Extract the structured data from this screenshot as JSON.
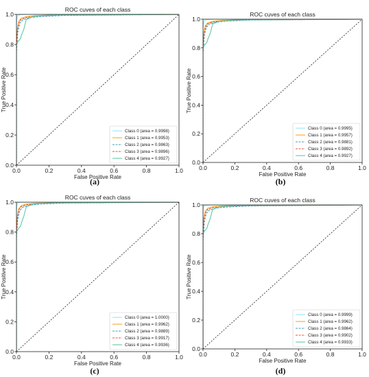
{
  "style": {
    "class_colors": [
      "#8fe8f7",
      "#f5a623",
      "#3b9ec2",
      "#e8503a",
      "#5fc9a7"
    ],
    "class_dash": [
      "solid",
      "solid",
      "dashed",
      "dashed",
      "solid"
    ],
    "diagonal_color": "#333333"
  },
  "chart_data": [
    {
      "type": "line",
      "panel": "a",
      "caption": "(a)",
      "title": "ROC cuves of each class",
      "xlabel": "False Positive Rate",
      "ylabel": "True Positive Rate",
      "xlim": [
        0,
        1
      ],
      "ylim": [
        0,
        1
      ],
      "xticks": [
        "0.0",
        "0.2",
        "0.4",
        "0.6",
        "0.8",
        "1.0"
      ],
      "yticks": [
        "0.0",
        "0.2",
        "0.4",
        "0.6",
        "0.8",
        "1.0"
      ],
      "grid": false,
      "legend_position": "lower-right",
      "series": [
        {
          "name": "Class 0 (area = 0.9998)",
          "x": [
            0,
            0,
            0.002,
            0.006,
            0.015,
            0.03,
            0.06,
            1
          ],
          "y": [
            0,
            0.91,
            0.97,
            0.99,
            0.997,
            0.999,
            1,
            1
          ]
        },
        {
          "name": "Class 1 (area = 0.9953)",
          "x": [
            0,
            0,
            0.006,
            0.015,
            0.03,
            0.06,
            0.12,
            0.25,
            1
          ],
          "y": [
            0,
            0.8,
            0.91,
            0.955,
            0.975,
            0.985,
            0.992,
            0.997,
            1
          ]
        },
        {
          "name": "Class 2 (area = 0.9863)",
          "x": [
            0,
            0,
            0.008,
            0.02,
            0.04,
            0.08,
            0.15,
            0.3,
            1
          ],
          "y": [
            0,
            0.75,
            0.88,
            0.94,
            0.965,
            0.978,
            0.986,
            0.993,
            1
          ]
        },
        {
          "name": "Class 3 (area = 0.9896)",
          "x": [
            0,
            0,
            0.006,
            0.015,
            0.03,
            0.06,
            0.12,
            0.25,
            1
          ],
          "y": [
            0,
            0.78,
            0.9,
            0.945,
            0.968,
            0.98,
            0.988,
            0.995,
            1
          ]
        },
        {
          "name": "Class 4 (area = 0.9927)",
          "x": [
            0,
            0,
            0.01,
            0.025,
            0.03,
            0.045,
            0.06,
            0.1,
            0.2,
            1
          ],
          "y": [
            0,
            0.8,
            0.82,
            0.84,
            0.86,
            0.9,
            0.965,
            0.985,
            0.995,
            1
          ]
        },
        {
          "name": "",
          "x": [
            0,
            1
          ],
          "y": [
            0,
            1
          ]
        }
      ]
    },
    {
      "type": "line",
      "panel": "b",
      "caption": "(b)",
      "title": "ROC cuves of each class",
      "xlabel": "False Positive Rate",
      "ylabel": "True Positive Rate",
      "xlim": [
        0,
        1
      ],
      "ylim": [
        0,
        1
      ],
      "xticks": [
        "0.0",
        "0.2",
        "0.4",
        "0.6",
        "0.8",
        "1.0"
      ],
      "yticks": [
        "0.0",
        "0.2",
        "0.4",
        "0.6",
        "0.8",
        "1.0"
      ],
      "grid": false,
      "legend_position": "lower-right",
      "series": [
        {
          "name": "Class 0 (area = 0.9995)",
          "x": [
            0,
            0,
            0.002,
            0.006,
            0.015,
            0.03,
            0.06,
            1
          ],
          "y": [
            0,
            0.9,
            0.965,
            0.985,
            0.995,
            0.998,
            1,
            1
          ]
        },
        {
          "name": "Class 1 (area = 0.9957)",
          "x": [
            0,
            0,
            0.006,
            0.015,
            0.03,
            0.06,
            0.12,
            0.25,
            1
          ],
          "y": [
            0,
            0.8,
            0.91,
            0.955,
            0.975,
            0.985,
            0.992,
            0.997,
            1
          ]
        },
        {
          "name": "Class 2 (area = 0.9881)",
          "x": [
            0,
            0,
            0.008,
            0.02,
            0.04,
            0.08,
            0.15,
            0.3,
            1
          ],
          "y": [
            0,
            0.76,
            0.885,
            0.942,
            0.966,
            0.979,
            0.987,
            0.994,
            1
          ]
        },
        {
          "name": "Class 3 (area = 0.9892)",
          "x": [
            0,
            0,
            0.006,
            0.015,
            0.03,
            0.06,
            0.12,
            0.25,
            1
          ],
          "y": [
            0,
            0.78,
            0.9,
            0.945,
            0.968,
            0.98,
            0.988,
            0.995,
            1
          ]
        },
        {
          "name": "Class 4 (area = 0.9927)",
          "x": [
            0,
            0,
            0.01,
            0.025,
            0.03,
            0.045,
            0.06,
            0.1,
            0.2,
            1
          ],
          "y": [
            0,
            0.8,
            0.82,
            0.84,
            0.86,
            0.9,
            0.965,
            0.985,
            0.995,
            1
          ]
        },
        {
          "name": "",
          "x": [
            0,
            1
          ],
          "y": [
            0,
            1
          ]
        }
      ]
    },
    {
      "type": "line",
      "panel": "c",
      "caption": "(c)",
      "title": "ROC cuves of each class",
      "xlabel": "False Positive Rate",
      "ylabel": "True Positive Rate",
      "xlim": [
        0,
        1
      ],
      "ylim": [
        0,
        1
      ],
      "xticks": [
        "0.0",
        "0.2",
        "0.4",
        "0.6",
        "0.8",
        "1.0"
      ],
      "yticks": [
        "0.0",
        "0.2",
        "0.4",
        "0.6",
        "0.8",
        "1.0"
      ],
      "grid": false,
      "legend_position": "lower-right",
      "series": [
        {
          "name": "Class 0 (area = 1.0000)",
          "x": [
            0,
            0,
            0.002,
            0.006,
            0.015,
            0.03,
            1
          ],
          "y": [
            0,
            0.93,
            0.98,
            0.995,
            0.999,
            1,
            1
          ]
        },
        {
          "name": "Class 1 (area = 0.9962)",
          "x": [
            0,
            0,
            0.006,
            0.015,
            0.03,
            0.06,
            0.12,
            0.25,
            1
          ],
          "y": [
            0,
            0.81,
            0.915,
            0.958,
            0.977,
            0.987,
            0.993,
            0.998,
            1
          ]
        },
        {
          "name": "Class 2 (area = 0.9889)",
          "x": [
            0,
            0,
            0.008,
            0.02,
            0.04,
            0.08,
            0.15,
            0.3,
            1
          ],
          "y": [
            0,
            0.76,
            0.887,
            0.944,
            0.967,
            0.98,
            0.988,
            0.994,
            1
          ]
        },
        {
          "name": "Class 3 (area = 0.9917)",
          "x": [
            0,
            0,
            0.006,
            0.015,
            0.03,
            0.06,
            0.12,
            0.25,
            1
          ],
          "y": [
            0,
            0.79,
            0.905,
            0.95,
            0.971,
            0.982,
            0.99,
            0.996,
            1
          ]
        },
        {
          "name": "Class 4 (area = 0.9936)",
          "x": [
            0,
            0,
            0.01,
            0.025,
            0.03,
            0.045,
            0.06,
            0.1,
            0.2,
            1
          ],
          "y": [
            0,
            0.8,
            0.82,
            0.84,
            0.86,
            0.905,
            0.968,
            0.987,
            0.996,
            1
          ]
        },
        {
          "name": "",
          "x": [
            0,
            1
          ],
          "y": [
            0,
            1
          ]
        }
      ]
    },
    {
      "type": "line",
      "panel": "d",
      "caption": "(d)",
      "title": "ROC cuves of each class",
      "xlabel": "False Positive Rate",
      "ylabel": "True Positive Rate",
      "xlim": [
        0,
        1
      ],
      "ylim": [
        0,
        1
      ],
      "xticks": [
        "0.0",
        "0.2",
        "0.4",
        "0.6",
        "0.8",
        "1.0"
      ],
      "yticks": [
        "0.0",
        "0.2",
        "0.4",
        "0.6",
        "0.8",
        "1.0"
      ],
      "grid": false,
      "legend_position": "lower-right",
      "series": [
        {
          "name": "Class 0 (area = 0.9999)",
          "x": [
            0,
            0,
            0.002,
            0.006,
            0.015,
            0.03,
            0.06,
            1
          ],
          "y": [
            0,
            0.92,
            0.975,
            0.992,
            0.998,
            0.999,
            1,
            1
          ]
        },
        {
          "name": "Class 1 (area = 0.9962)",
          "x": [
            0,
            0,
            0.006,
            0.015,
            0.03,
            0.06,
            0.12,
            0.25,
            1
          ],
          "y": [
            0,
            0.81,
            0.915,
            0.958,
            0.977,
            0.987,
            0.993,
            0.998,
            1
          ]
        },
        {
          "name": "Class 2 (area = 0.9864)",
          "x": [
            0,
            0,
            0.008,
            0.02,
            0.04,
            0.08,
            0.15,
            0.3,
            1
          ],
          "y": [
            0,
            0.75,
            0.88,
            0.94,
            0.965,
            0.978,
            0.986,
            0.993,
            1
          ]
        },
        {
          "name": "Class 3 (area = 0.9902)",
          "x": [
            0,
            0,
            0.006,
            0.015,
            0.03,
            0.06,
            0.12,
            0.25,
            1
          ],
          "y": [
            0,
            0.78,
            0.9,
            0.946,
            0.969,
            0.981,
            0.989,
            0.995,
            1
          ]
        },
        {
          "name": "Class 4 (area = 0.9933)",
          "x": [
            0,
            0,
            0.01,
            0.025,
            0.03,
            0.045,
            0.06,
            0.1,
            0.2,
            1
          ],
          "y": [
            0,
            0.8,
            0.82,
            0.84,
            0.86,
            0.905,
            0.967,
            0.986,
            0.996,
            1
          ]
        },
        {
          "name": "",
          "x": [
            0,
            1
          ],
          "y": [
            0,
            1
          ]
        }
      ]
    }
  ]
}
